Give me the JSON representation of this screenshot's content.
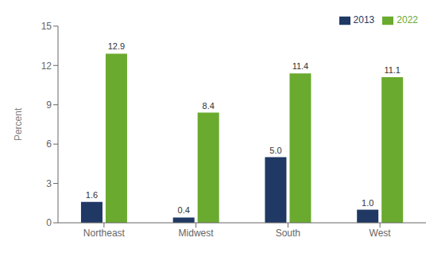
{
  "chart_data": {
    "type": "bar",
    "categories": [
      "Northeast",
      "Midwest",
      "South",
      "West"
    ],
    "series": [
      {
        "name": "2013",
        "color": "#1f3864",
        "values": [
          1.6,
          0.4,
          5.0,
          1.0
        ],
        "value_labels": [
          "1.6",
          "0.4",
          "5.0",
          "1.0"
        ]
      },
      {
        "name": "2022",
        "color": "#6aaa2e",
        "values": [
          12.9,
          8.4,
          11.4,
          11.1
        ],
        "value_labels": [
          "12.9",
          "8.4",
          "11.4",
          "11.1"
        ]
      }
    ],
    "ylabel": "Percent",
    "ylim": [
      0,
      15
    ],
    "yticks": [
      0,
      3,
      6,
      9,
      12,
      15
    ],
    "data_labels": true,
    "legend": "upper right",
    "grid": false
  }
}
